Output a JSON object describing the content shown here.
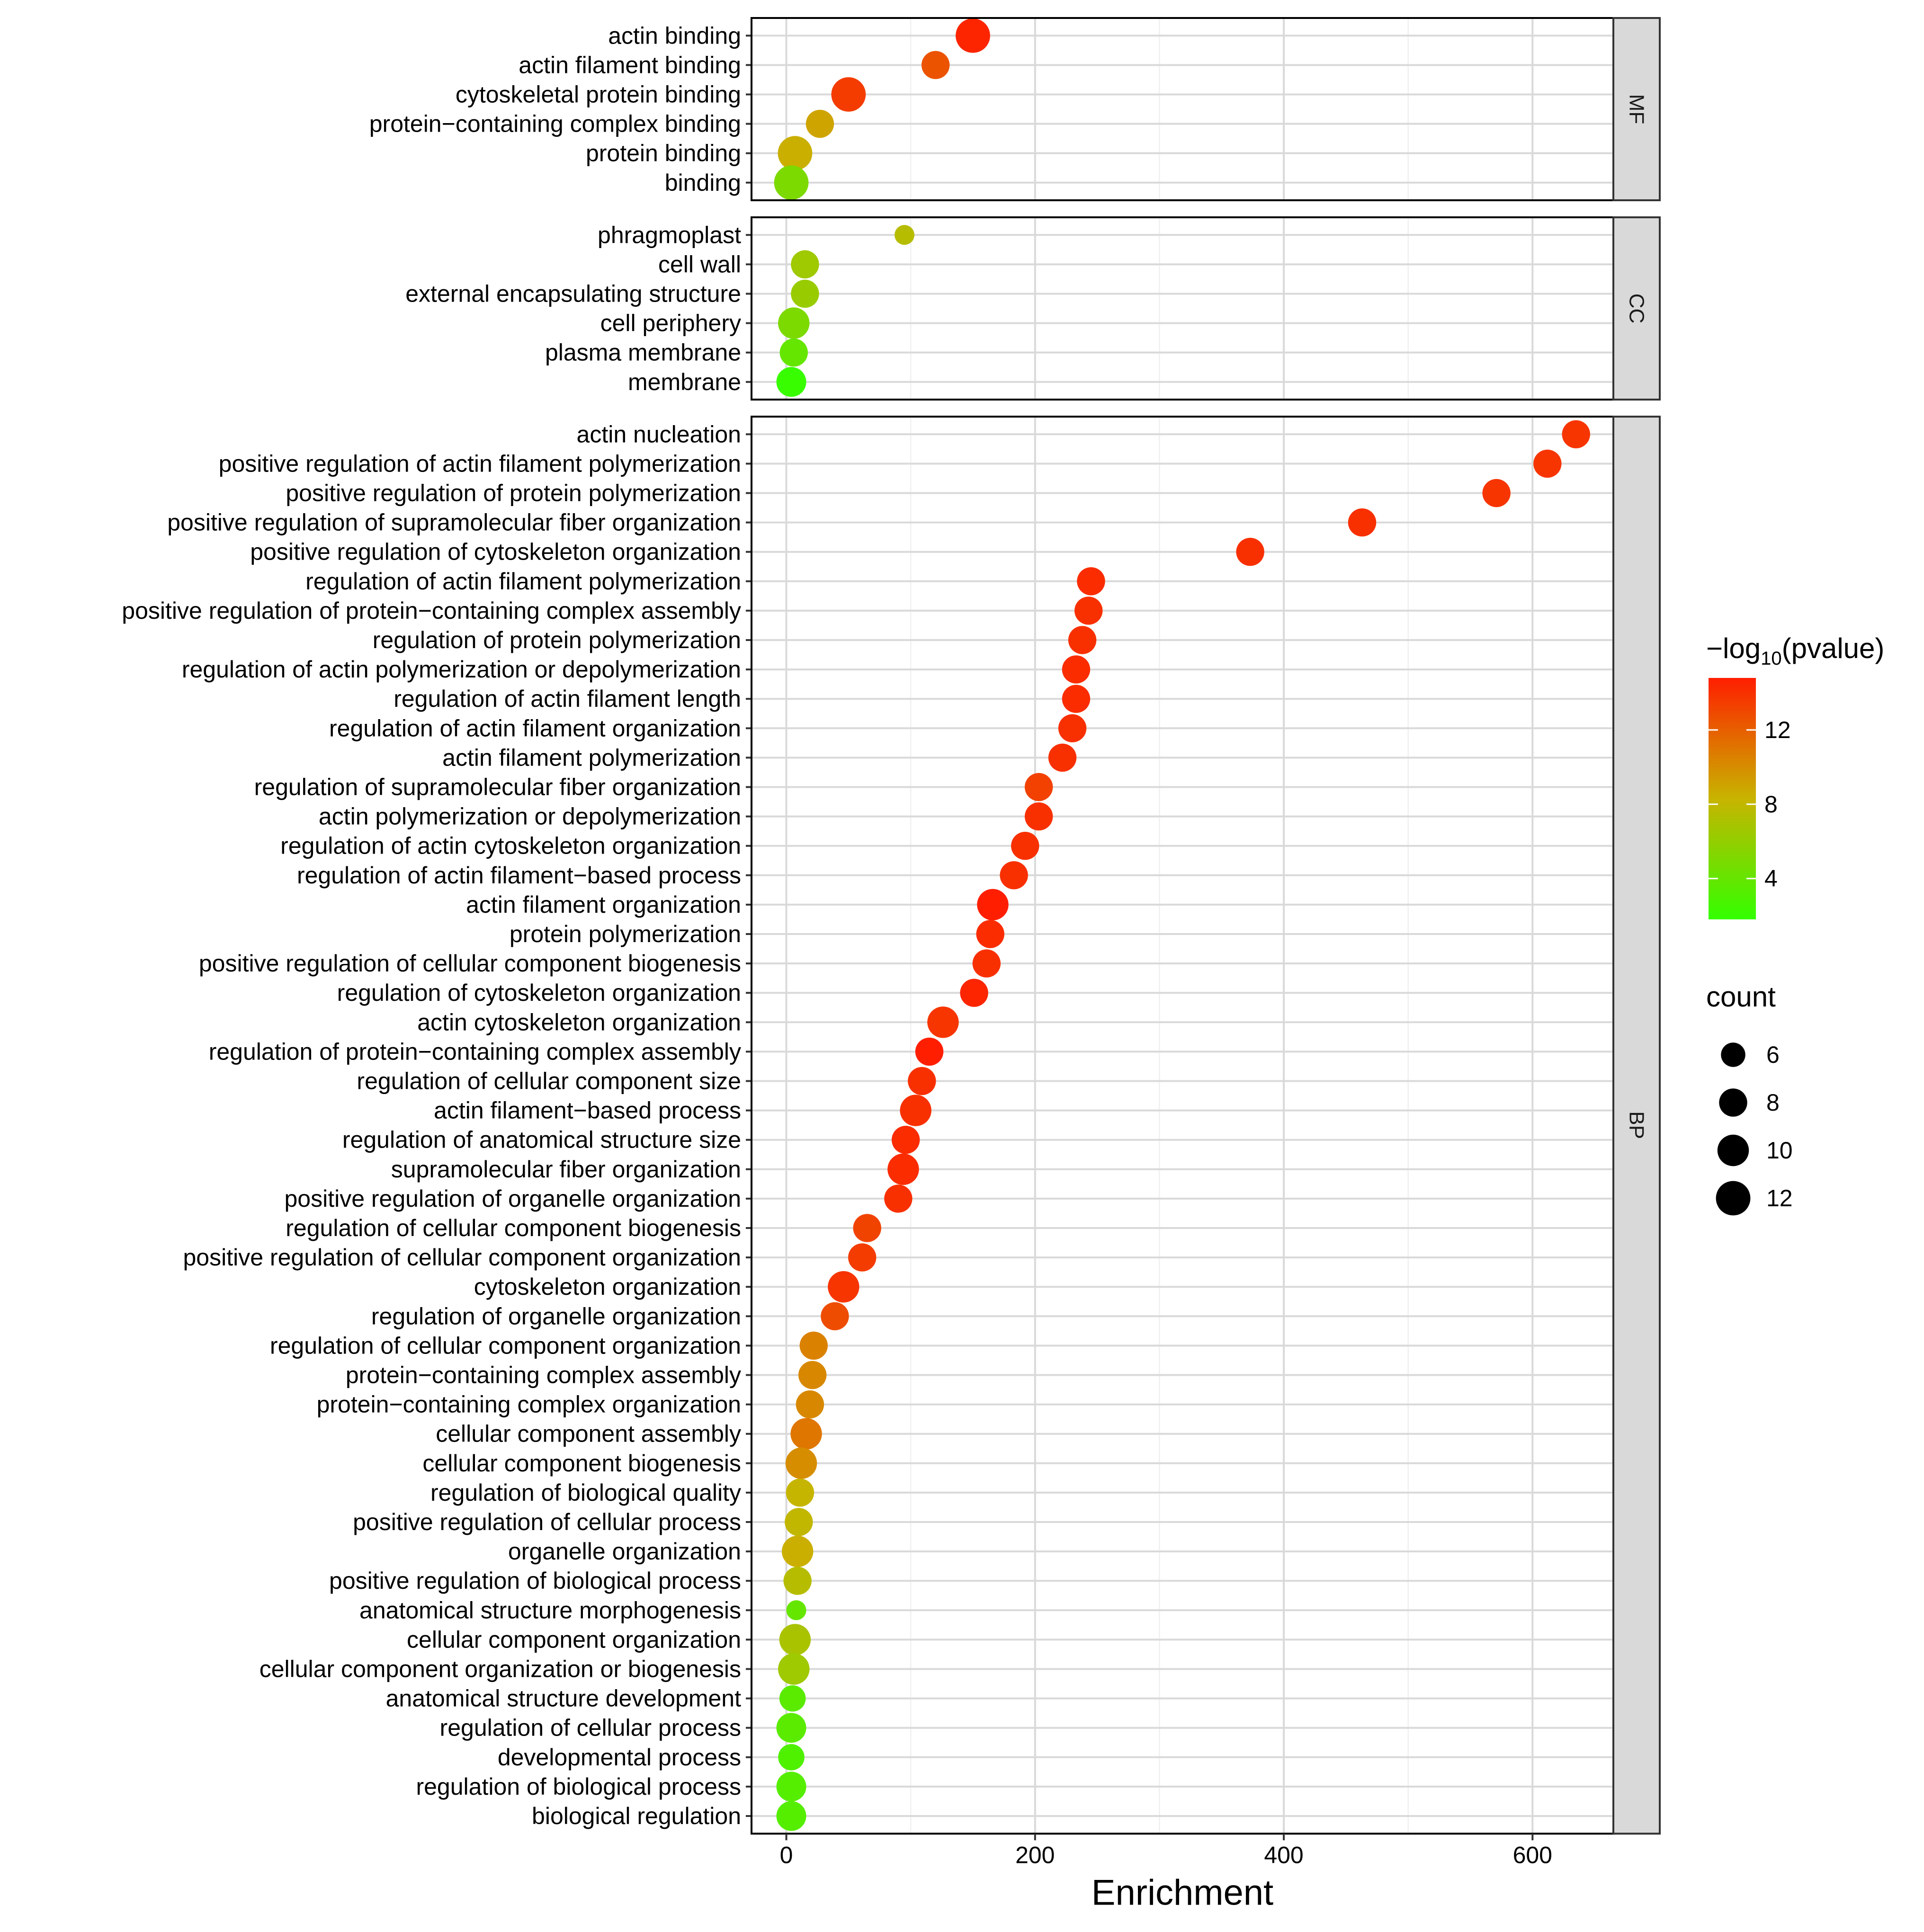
{
  "chart_data": {
    "type": "scatter",
    "xlabel": "Enrichment",
    "xlim": [
      -28,
      665
    ],
    "xticks": [
      0,
      200,
      400,
      600
    ],
    "x_tick_labels": [
      "0",
      "200",
      "400",
      "600"
    ],
    "grid": true,
    "color_legend": {
      "title_prefix": "−log",
      "title_subscript": "10",
      "title_suffix": "(pvalue)",
      "range": [
        1.8,
        14.8
      ],
      "ticks": [
        4,
        8,
        12
      ],
      "tick_labels": [
        "4",
        "8",
        "12"
      ],
      "low_color": "#33ff00",
      "mid_color": "#c8b400",
      "high_color": "#ff1e00"
    },
    "size_legend": {
      "title": "count",
      "values": [
        6,
        8,
        10,
        12
      ],
      "labels": [
        "6",
        "8",
        "10",
        "12"
      ]
    },
    "panels": [
      {
        "name": "MF",
        "terms": [
          {
            "term": "actin binding",
            "enrichment": 150,
            "count": 12,
            "neglog10p": 14.5
          },
          {
            "term": "actin filament binding",
            "enrichment": 120,
            "count": 8,
            "neglog10p": 12.5
          },
          {
            "term": "cytoskeletal protein binding",
            "enrichment": 50,
            "count": 12,
            "neglog10p": 13.5
          },
          {
            "term": "protein−containing complex binding",
            "enrichment": 27,
            "count": 8,
            "neglog10p": 9
          },
          {
            "term": "protein binding",
            "enrichment": 7,
            "count": 12,
            "neglog10p": 8.5
          },
          {
            "term": "binding",
            "enrichment": 4,
            "count": 12,
            "neglog10p": 5
          }
        ]
      },
      {
        "name": "CC",
        "terms": [
          {
            "term": "phragmoplast",
            "enrichment": 95,
            "count": 4,
            "neglog10p": 7.5
          },
          {
            "term": "cell wall",
            "enrichment": 15,
            "count": 8,
            "neglog10p": 6.5
          },
          {
            "term": "external encapsulating structure",
            "enrichment": 15,
            "count": 8,
            "neglog10p": 6.2
          },
          {
            "term": "cell periphery",
            "enrichment": 6,
            "count": 10,
            "neglog10p": 5
          },
          {
            "term": "plasma membrane",
            "enrichment": 6,
            "count": 8,
            "neglog10p": 4
          },
          {
            "term": "membrane",
            "enrichment": 4,
            "count": 9,
            "neglog10p": 2
          }
        ]
      },
      {
        "name": "BP",
        "terms": [
          {
            "term": "actin nucleation",
            "enrichment": 635,
            "count": 8,
            "neglog10p": 13.8
          },
          {
            "term": "positive regulation of actin filament polymerization",
            "enrichment": 612,
            "count": 8,
            "neglog10p": 13.8
          },
          {
            "term": "positive regulation of protein polymerization",
            "enrichment": 571,
            "count": 8,
            "neglog10p": 13.8
          },
          {
            "term": "positive regulation of supramolecular fiber organization",
            "enrichment": 463,
            "count": 8,
            "neglog10p": 14
          },
          {
            "term": "positive regulation of cytoskeleton organization",
            "enrichment": 373,
            "count": 8,
            "neglog10p": 14
          },
          {
            "term": "regulation of actin filament polymerization",
            "enrichment": 245,
            "count": 8,
            "neglog10p": 14.2
          },
          {
            "term": "positive regulation of protein−containing complex assembly",
            "enrichment": 243,
            "count": 8,
            "neglog10p": 14
          },
          {
            "term": "regulation of protein polymerization",
            "enrichment": 238,
            "count": 8,
            "neglog10p": 14
          },
          {
            "term": "regulation of actin polymerization or depolymerization",
            "enrichment": 233,
            "count": 8,
            "neglog10p": 14.2
          },
          {
            "term": "regulation of actin filament length",
            "enrichment": 233,
            "count": 8,
            "neglog10p": 14.2
          },
          {
            "term": "regulation of actin filament organization",
            "enrichment": 230,
            "count": 8,
            "neglog10p": 14
          },
          {
            "term": "actin filament polymerization",
            "enrichment": 222,
            "count": 8,
            "neglog10p": 14
          },
          {
            "term": "regulation of supramolecular fiber organization",
            "enrichment": 203,
            "count": 8,
            "neglog10p": 13.3
          },
          {
            "term": "actin polymerization or depolymerization",
            "enrichment": 203,
            "count": 8,
            "neglog10p": 14
          },
          {
            "term": "regulation of actin cytoskeleton organization",
            "enrichment": 192,
            "count": 8,
            "neglog10p": 14
          },
          {
            "term": "regulation of actin filament−based process",
            "enrichment": 183,
            "count": 8,
            "neglog10p": 14
          },
          {
            "term": "actin filament organization",
            "enrichment": 166,
            "count": 10,
            "neglog10p": 14.8
          },
          {
            "term": "protein polymerization",
            "enrichment": 164,
            "count": 8,
            "neglog10p": 14.2
          },
          {
            "term": "positive regulation of cellular component biogenesis",
            "enrichment": 161,
            "count": 8,
            "neglog10p": 14
          },
          {
            "term": "regulation of cytoskeleton organization",
            "enrichment": 151,
            "count": 8,
            "neglog10p": 14.5
          },
          {
            "term": "actin cytoskeleton organization",
            "enrichment": 126,
            "count": 10,
            "neglog10p": 13.8
          },
          {
            "term": "regulation of protein−containing complex assembly",
            "enrichment": 115,
            "count": 8,
            "neglog10p": 14.8
          },
          {
            "term": "regulation of cellular component size",
            "enrichment": 109,
            "count": 8,
            "neglog10p": 14
          },
          {
            "term": "actin filament−based process",
            "enrichment": 104,
            "count": 10,
            "neglog10p": 14
          },
          {
            "term": "regulation of anatomical structure size",
            "enrichment": 96,
            "count": 8,
            "neglog10p": 14.2
          },
          {
            "term": "supramolecular fiber organization",
            "enrichment": 94,
            "count": 10,
            "neglog10p": 14.2
          },
          {
            "term": "positive regulation of organelle organization",
            "enrichment": 90,
            "count": 8,
            "neglog10p": 14
          },
          {
            "term": "regulation of cellular component biogenesis",
            "enrichment": 65,
            "count": 8,
            "neglog10p": 13.2
          },
          {
            "term": "positive regulation of cellular component organization",
            "enrichment": 61,
            "count": 8,
            "neglog10p": 13.5
          },
          {
            "term": "cytoskeleton organization",
            "enrichment": 46,
            "count": 10,
            "neglog10p": 13.8
          },
          {
            "term": "regulation of organelle organization",
            "enrichment": 39,
            "count": 8,
            "neglog10p": 12.8
          },
          {
            "term": "regulation of cellular component organization",
            "enrichment": 22,
            "count": 8,
            "neglog10p": 10.5
          },
          {
            "term": "protein−containing complex assembly",
            "enrichment": 21,
            "count": 8,
            "neglog10p": 10.2
          },
          {
            "term": "protein−containing complex organization",
            "enrichment": 19,
            "count": 8,
            "neglog10p": 10.2
          },
          {
            "term": "cellular component assembly",
            "enrichment": 16,
            "count": 10,
            "neglog10p": 11
          },
          {
            "term": "cellular component biogenesis",
            "enrichment": 12,
            "count": 10,
            "neglog10p": 10
          },
          {
            "term": "regulation of biological quality",
            "enrichment": 11,
            "count": 8,
            "neglog10p": 8.2
          },
          {
            "term": "positive regulation of cellular process",
            "enrichment": 10,
            "count": 8,
            "neglog10p": 8
          },
          {
            "term": "organelle organization",
            "enrichment": 9,
            "count": 10,
            "neglog10p": 8.5
          },
          {
            "term": "positive regulation of biological process",
            "enrichment": 9,
            "count": 8,
            "neglog10p": 7.5
          },
          {
            "term": "anatomical structure morphogenesis",
            "enrichment": 8,
            "count": 4,
            "neglog10p": 4
          },
          {
            "term": "cellular component organization",
            "enrichment": 7,
            "count": 10,
            "neglog10p": 7
          },
          {
            "term": "cellular component organization or biogenesis",
            "enrichment": 6,
            "count": 10,
            "neglog10p": 6.5
          },
          {
            "term": "anatomical structure development",
            "enrichment": 5,
            "count": 7,
            "neglog10p": 3.5
          },
          {
            "term": "regulation of cellular process",
            "enrichment": 4,
            "count": 9,
            "neglog10p": 3.5
          },
          {
            "term": "developmental process",
            "enrichment": 4,
            "count": 7,
            "neglog10p": 3
          },
          {
            "term": "regulation of biological process",
            "enrichment": 4,
            "count": 9,
            "neglog10p": 3.3
          },
          {
            "term": "biological regulation",
            "enrichment": 4,
            "count": 9,
            "neglog10p": 3.3
          }
        ]
      }
    ]
  }
}
